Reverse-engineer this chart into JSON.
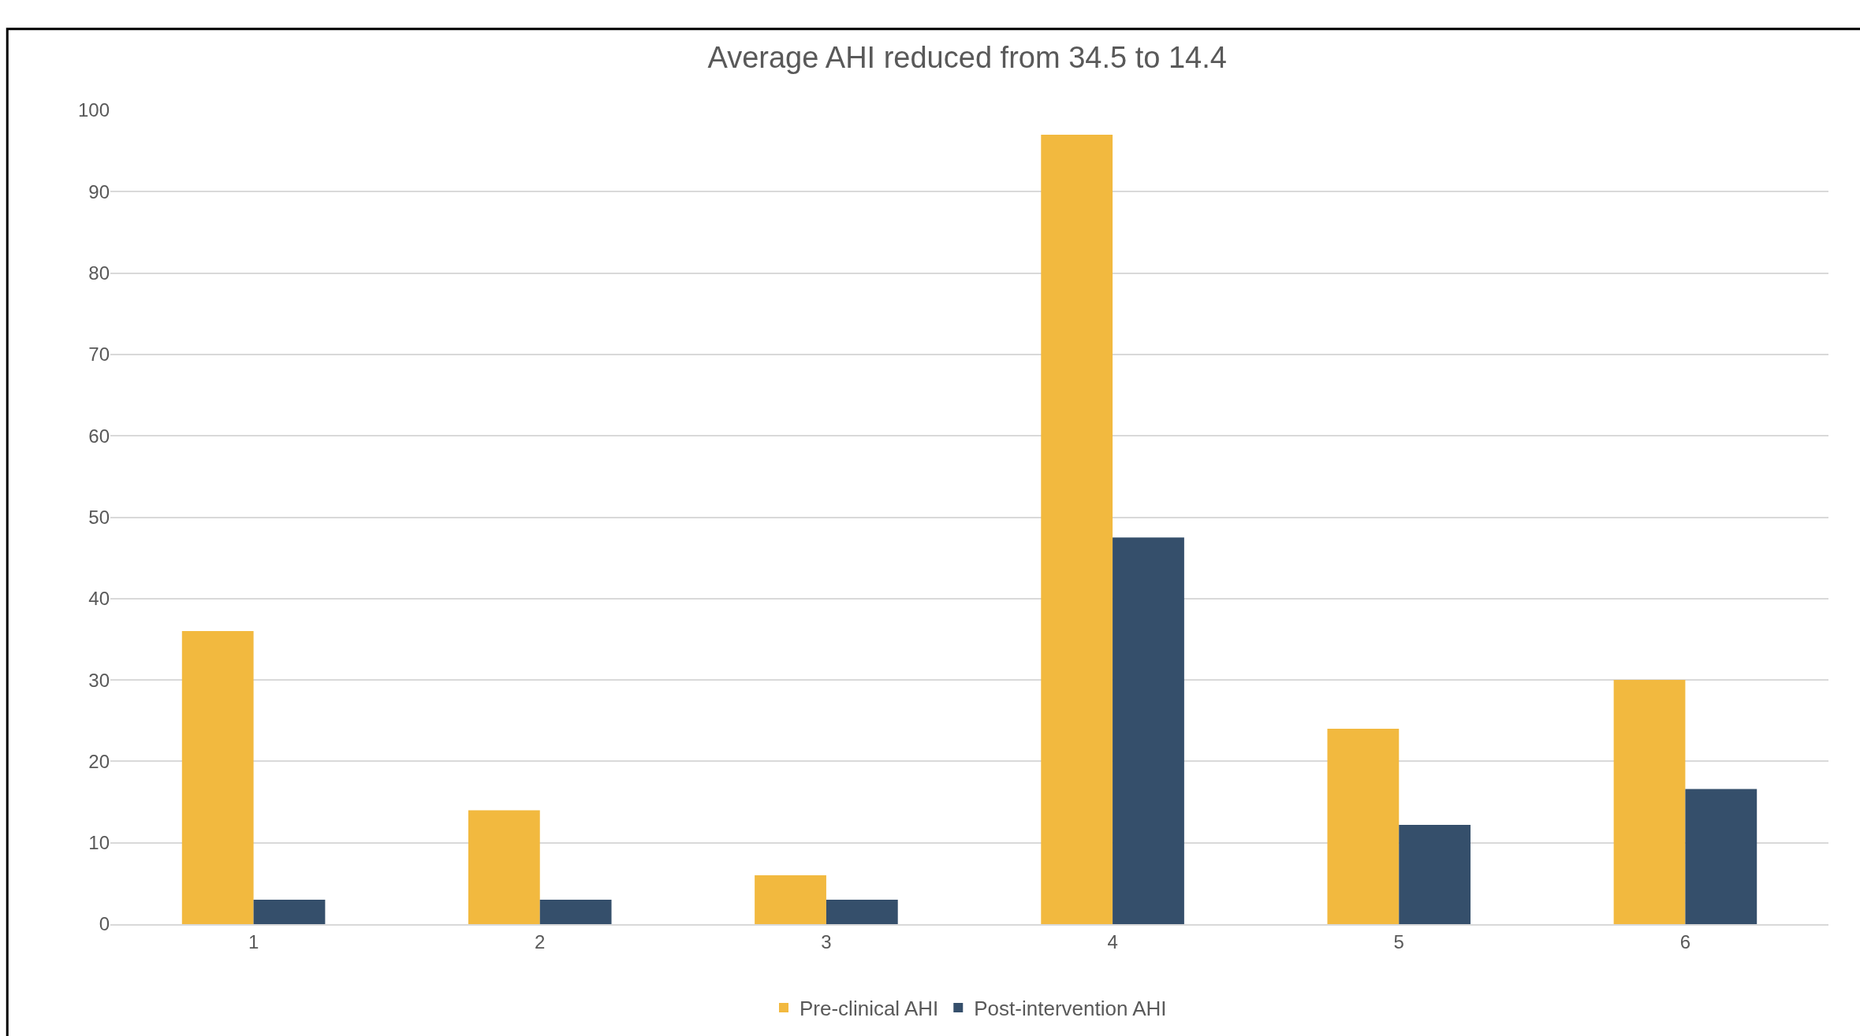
{
  "chart_data": {
    "type": "bar",
    "title": "Average AHI reduced from 34.5 to 14.4",
    "categories": [
      "1",
      "2",
      "3",
      "4",
      "5",
      "6"
    ],
    "series": [
      {
        "name": "Pre-clinical AHI",
        "color": "#f2b93f",
        "values": [
          36,
          14,
          6,
          97,
          24,
          30
        ]
      },
      {
        "name": "Post-intervention AHI",
        "color": "#354f6b",
        "values": [
          3,
          3,
          3,
          47.5,
          12.2,
          16.6
        ]
      }
    ],
    "ylim": [
      0,
      100
    ],
    "yticks": [
      0,
      10,
      20,
      30,
      40,
      50,
      60,
      70,
      80,
      90,
      100
    ],
    "grid": "y",
    "legend": "bottom"
  }
}
